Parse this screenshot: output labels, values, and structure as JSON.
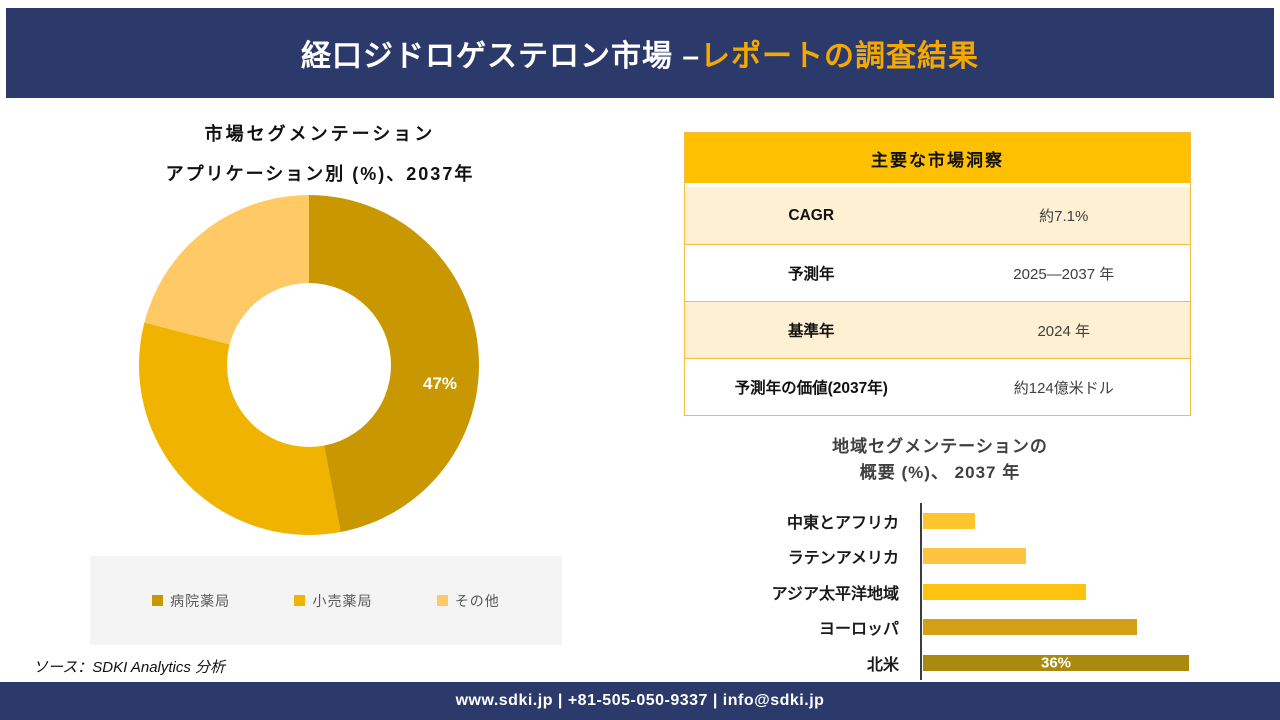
{
  "header": {
    "title_white": "経口ジドロゲステロン市場 –",
    "title_gold": "レポートの調査結果"
  },
  "donut_section": {
    "title_line1": "市場セグメンテーション",
    "title_line2": "アプリケーション別 (%)、2037年"
  },
  "insights_table": {
    "header": "主要な市場洞察",
    "rows": [
      {
        "label": "CAGR",
        "value": "約7.1%"
      },
      {
        "label": "予測年",
        "value": "2025—2037 年"
      },
      {
        "label": "基準年",
        "value": "2024 年"
      },
      {
        "label": "予測年の価値(2037年)",
        "value": "約124億米ドル"
      }
    ]
  },
  "bar_section": {
    "title_line1": "地域セグメンテーションの",
    "title_line2": "概要 (%)、 2037 年"
  },
  "chart_data": [
    {
      "type": "pie",
      "subtype": "donut",
      "title": "市場セグメンテーション アプリケーション別 (%)、2037年",
      "labels": [
        "病院薬局",
        "小売薬局",
        "その他"
      ],
      "values": [
        47,
        32,
        21
      ],
      "colors": [
        "#C99700",
        "#F0B400",
        "#FFCA66"
      ],
      "data_label": {
        "series": "病院薬局",
        "text": "47%"
      },
      "legend_position": "bottom"
    },
    {
      "type": "bar",
      "orientation": "horizontal",
      "title": "地域セグメンテーションの概要 (%)、2037 年",
      "categories": [
        "中東とアフリカ",
        "ラテンアメリカ",
        "アジア太平洋地域",
        "ヨーロッパ",
        "北米"
      ],
      "values": [
        7,
        14,
        22,
        29,
        36
      ],
      "values_note": "only 北米 carries a visible data label (36%); other values estimated from bar lengths",
      "colors": [
        "#FFC52F",
        "#FFC340",
        "#FFC30F",
        "#D4A017",
        "#AA8A0E"
      ],
      "data_labels": {
        "北米": "36%"
      },
      "xlim": [
        0,
        38
      ],
      "grid": false
    }
  ],
  "source_note": "ソース：SDKI Analytics 分析",
  "footer": {
    "text": "www.sdki.jp | +81-505-050-9337 | info@sdki.jp"
  }
}
